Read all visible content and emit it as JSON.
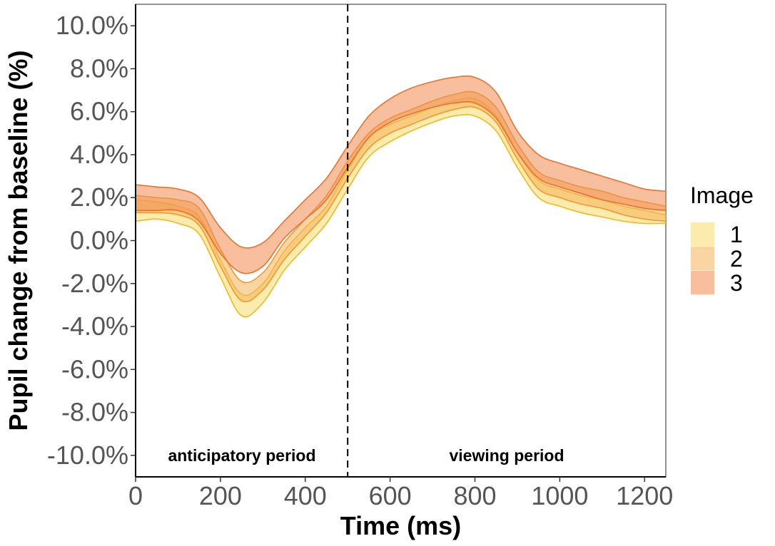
{
  "chart_data": {
    "type": "area",
    "title": "",
    "xlabel": "Time (ms)",
    "ylabel": "Pupil change from baseline (%)",
    "xlim": [
      0,
      1250
    ],
    "ylim": [
      -11,
      11
    ],
    "xticks": [
      0,
      200,
      400,
      600,
      800,
      1000,
      1200
    ],
    "xtick_labels": [
      "0",
      "200",
      "400",
      "600",
      "800",
      "1000",
      "1200"
    ],
    "yticks": [
      10,
      8,
      6,
      4,
      2,
      0,
      -2,
      -4,
      -6,
      -8,
      -10
    ],
    "ytick_labels": [
      "10.0%",
      "8.0%",
      "6.0%",
      "4.0%",
      "2.0%",
      "0.0%",
      "-2.0%",
      "-4.0%",
      "-6.0%",
      "-8.0%",
      "-10.0%"
    ],
    "grid": false,
    "vline": {
      "x": 500,
      "style": "dashed"
    },
    "annotations": [
      {
        "text": "anticipatory period",
        "x": 250,
        "y": -10
      },
      {
        "text": "viewing period",
        "x": 875,
        "y": -10
      }
    ],
    "legend": {
      "title": "Image",
      "position": "right",
      "entries": [
        {
          "label": "1",
          "color": "#F7DA6A"
        },
        {
          "label": "2",
          "color": "#F6B25A"
        },
        {
          "label": "3",
          "color": "#F08A4C"
        }
      ]
    },
    "x": [
      0,
      50,
      100,
      150,
      200,
      250,
      300,
      350,
      400,
      450,
      500,
      550,
      600,
      650,
      700,
      750,
      800,
      850,
      900,
      950,
      1000,
      1050,
      1100,
      1150,
      1200,
      1250
    ],
    "series": [
      {
        "name": "1",
        "fill": "#F7DA6A",
        "line": "#EDB82E",
        "upper": [
          1.9,
          1.8,
          1.6,
          1.1,
          -0.9,
          -2.5,
          -2.0,
          -0.5,
          0.6,
          1.6,
          3.3,
          4.8,
          5.4,
          5.8,
          6.2,
          6.5,
          6.6,
          5.8,
          4.1,
          2.8,
          2.4,
          2.1,
          1.9,
          1.6,
          1.4,
          1.2
        ],
        "lower": [
          0.9,
          1.0,
          0.8,
          0.3,
          -1.7,
          -3.5,
          -2.9,
          -1.4,
          -0.3,
          0.8,
          2.4,
          3.9,
          4.6,
          5.1,
          5.5,
          5.8,
          5.8,
          5.1,
          3.4,
          2.0,
          1.6,
          1.3,
          1.1,
          0.9,
          0.8,
          0.8
        ]
      },
      {
        "name": "2",
        "fill": "#F6B25A",
        "line": "#EE9A33",
        "upper": [
          2.1,
          2.0,
          1.9,
          1.5,
          -0.4,
          -1.9,
          -1.5,
          -0.1,
          1.0,
          2.1,
          3.7,
          5.0,
          5.7,
          6.1,
          6.5,
          6.8,
          6.9,
          6.2,
          4.5,
          3.2,
          2.8,
          2.5,
          2.3,
          2.0,
          1.8,
          1.6
        ],
        "lower": [
          1.3,
          1.3,
          1.2,
          0.7,
          -1.2,
          -2.8,
          -2.3,
          -0.9,
          0.2,
          1.3,
          2.9,
          4.3,
          5.0,
          5.4,
          5.8,
          6.1,
          6.2,
          5.5,
          3.8,
          2.4,
          2.0,
          1.7,
          1.5,
          1.2,
          1.0,
          0.9
        ]
      },
      {
        "name": "3",
        "fill": "#F08A4C",
        "line": "#E8732A",
        "upper": [
          2.6,
          2.5,
          2.4,
          2.0,
          0.6,
          -0.3,
          -0.1,
          0.9,
          1.9,
          2.9,
          4.4,
          5.8,
          6.6,
          7.1,
          7.4,
          7.6,
          7.6,
          6.9,
          5.1,
          4.0,
          3.6,
          3.3,
          3.0,
          2.7,
          2.4,
          2.3
        ],
        "lower": [
          1.4,
          1.4,
          1.4,
          0.9,
          -0.6,
          -1.5,
          -1.2,
          0.1,
          1.0,
          1.9,
          3.4,
          4.8,
          5.5,
          5.9,
          6.2,
          6.4,
          6.4,
          5.7,
          4.1,
          2.9,
          2.5,
          2.2,
          1.9,
          1.7,
          1.5,
          1.4
        ]
      }
    ]
  }
}
